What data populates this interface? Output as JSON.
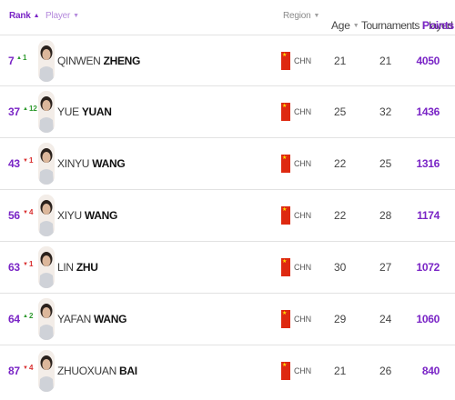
{
  "header": {
    "rank": "Rank",
    "player": "Player",
    "region": "Region",
    "age": "Age",
    "tournaments": "Tournaments Played",
    "points": "Points"
  },
  "colors": {
    "accent": "#7a25c6",
    "up": "#2e9a2e",
    "down": "#d93030",
    "flag": "#de2910"
  },
  "players": [
    {
      "rank": "7",
      "movement": "1",
      "direction": "up",
      "first": "QINWEN",
      "last": "ZHENG",
      "region": "CHN",
      "age": "21",
      "played": "21",
      "points": "4050"
    },
    {
      "rank": "37",
      "movement": "12",
      "direction": "up",
      "first": "YUE",
      "last": "YUAN",
      "region": "CHN",
      "age": "25",
      "played": "32",
      "points": "1436"
    },
    {
      "rank": "43",
      "movement": "1",
      "direction": "down",
      "first": "XINYU",
      "last": "WANG",
      "region": "CHN",
      "age": "22",
      "played": "25",
      "points": "1316"
    },
    {
      "rank": "56",
      "movement": "4",
      "direction": "down",
      "first": "XIYU",
      "last": "WANG",
      "region": "CHN",
      "age": "22",
      "played": "28",
      "points": "1174"
    },
    {
      "rank": "63",
      "movement": "1",
      "direction": "down",
      "first": "LIN",
      "last": "ZHU",
      "region": "CHN",
      "age": "30",
      "played": "27",
      "points": "1072"
    },
    {
      "rank": "64",
      "movement": "2",
      "direction": "up",
      "first": "YAFAN",
      "last": "WANG",
      "region": "CHN",
      "age": "29",
      "played": "24",
      "points": "1060"
    },
    {
      "rank": "87",
      "movement": "4",
      "direction": "down",
      "first": "ZHUOXUAN",
      "last": "BAI",
      "region": "CHN",
      "age": "21",
      "played": "26",
      "points": "840"
    }
  ]
}
